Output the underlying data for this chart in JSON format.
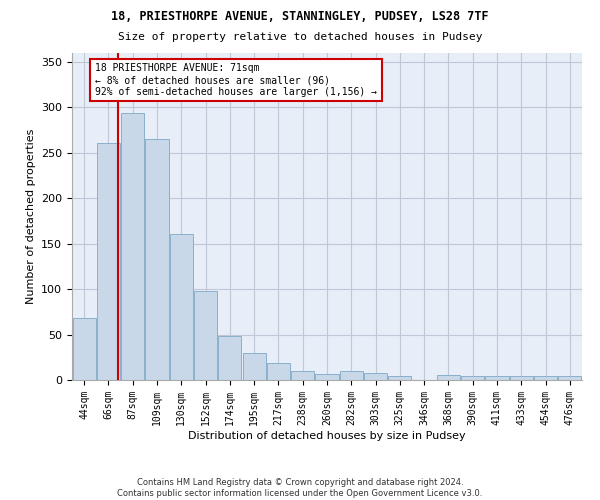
{
  "title1": "18, PRIESTHORPE AVENUE, STANNINGLEY, PUDSEY, LS28 7TF",
  "title2": "Size of property relative to detached houses in Pudsey",
  "xlabel": "Distribution of detached houses by size in Pudsey",
  "ylabel": "Number of detached properties",
  "bar_labels": [
    "44sqm",
    "66sqm",
    "87sqm",
    "109sqm",
    "130sqm",
    "152sqm",
    "174sqm",
    "195sqm",
    "217sqm",
    "238sqm",
    "260sqm",
    "282sqm",
    "303sqm",
    "325sqm",
    "346sqm",
    "368sqm",
    "390sqm",
    "411sqm",
    "433sqm",
    "454sqm",
    "476sqm"
  ],
  "bar_values": [
    68,
    260,
    293,
    265,
    160,
    98,
    48,
    30,
    19,
    10,
    7,
    10,
    8,
    4,
    0,
    5,
    4,
    4,
    4,
    4,
    4
  ],
  "bar_color": "#c8d8e8",
  "bar_edge_color": "#8ab0cc",
  "red_line_x": 1.38,
  "annotation_line1": "18 PRIESTHORPE AVENUE: 71sqm",
  "annotation_line2": "← 8% of detached houses are smaller (96)",
  "annotation_line3": "92% of semi-detached houses are larger (1,156) →",
  "annotation_box_color": "#ffffff",
  "annotation_box_edge_color": "#cc0000",
  "red_line_color": "#cc0000",
  "grid_color": "#c0c8d8",
  "background_color": "#e8eef8",
  "ylim": [
    0,
    360
  ],
  "yticks": [
    0,
    50,
    100,
    150,
    200,
    250,
    300,
    350
  ],
  "footer1": "Contains HM Land Registry data © Crown copyright and database right 2024.",
  "footer2": "Contains public sector information licensed under the Open Government Licence v3.0."
}
